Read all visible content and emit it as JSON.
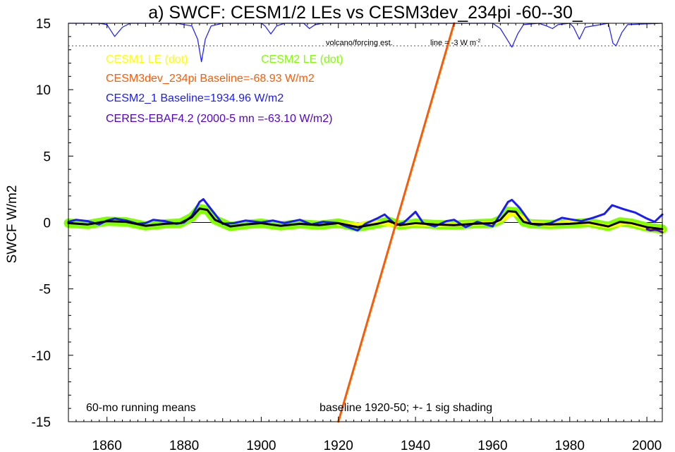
{
  "chart_data": {
    "type": "line",
    "title": "a) SWCF: CESM1/2 LEs vs CESM3dev_234pi -60--30_",
    "ylabel": "SWCF W/m2",
    "xlabel": "",
    "xlim": [
      1850,
      2004
    ],
    "ylim": [
      -15,
      15
    ],
    "x_ticks": [
      1860,
      1880,
      1900,
      1920,
      1940,
      1960,
      1980,
      2000
    ],
    "y_ticks": [
      15,
      10,
      5,
      0,
      -5,
      -10,
      -15
    ],
    "legend": [
      {
        "label": "CESM1 LE (dot)",
        "color": "#ffff00"
      },
      {
        "label": "CESM2 LE (dot)",
        "color": "#80ff00"
      },
      {
        "label": "CESM3dev_234pi Baseline=-68.93 W/m2",
        "color": "#ff5a00"
      },
      {
        "label": "CESM2_1 Baseline=1934.96 W/m2",
        "color": "#1a1aff"
      },
      {
        "label": "CERES-EBAF4.2 (2000-5 mn =-63.10 W/m2)",
        "color": "#5500cc"
      }
    ],
    "annotations": {
      "volcano": "volcano/forcing est.",
      "line_note": "line = -3 W m",
      "line_note_sup": "-2",
      "running": "60-mo running means",
      "baseline": "baseline 1920-50; +- 1 sig shading"
    },
    "reference_line_y": 13.3,
    "series": [
      {
        "name": "volcano/forcing est.",
        "color": "#1a1aff",
        "x": [
          1850,
          1858,
          1860,
          1862,
          1864,
          1866,
          1878,
          1882,
          1883.5,
          1884.5,
          1885.5,
          1887,
          1890,
          1900,
          1901,
          1902.5,
          1904,
          1906,
          1911,
          1912.5,
          1914,
          1916,
          1960,
          1962,
          1963.5,
          1965,
          1966.5,
          1968,
          1972,
          1974,
          1975.5,
          1977,
          1980,
          1981,
          1982.5,
          1984,
          1990,
          1991.2,
          1992,
          1993.5,
          1995,
          2004
        ],
        "y": [
          15,
          15,
          14.9,
          14,
          14.7,
          15,
          15,
          14.8,
          13.8,
          12.1,
          13.8,
          14.8,
          15,
          15,
          14.8,
          14.2,
          14.8,
          15,
          15,
          14.6,
          14.9,
          15,
          15,
          14.6,
          13.9,
          13.2,
          14.2,
          14.9,
          15,
          14.8,
          14.6,
          14.9,
          15,
          14.7,
          13.8,
          14.7,
          15,
          13.5,
          13.3,
          14.3,
          14.9,
          15
        ]
      },
      {
        "name": "CESM2 LE (dot)",
        "color": "#80ff00",
        "x": [
          1850,
          1855,
          1860,
          1865,
          1870,
          1875,
          1879,
          1882,
          1884,
          1886,
          1888,
          1892,
          1896,
          1900,
          1905,
          1910,
          1915,
          1920,
          1925,
          1930,
          1933,
          1936,
          1940,
          1945,
          1950,
          1955,
          1960,
          1962,
          1964,
          1966,
          1968,
          1970,
          1975,
          1980,
          1985,
          1990,
          1993,
          1996,
          2000,
          2004
        ],
        "y": [
          -0.05,
          -0.15,
          0.1,
          0.05,
          -0.25,
          -0.1,
          -0.05,
          0.4,
          1.05,
          0.95,
          0.2,
          -0.3,
          -0.15,
          -0.05,
          -0.25,
          -0.1,
          -0.2,
          -0.05,
          -0.35,
          -0.1,
          0.1,
          -0.2,
          -0.05,
          -0.15,
          -0.2,
          -0.1,
          -0.05,
          0.2,
          0.85,
          0.8,
          0.05,
          -0.1,
          -0.15,
          -0.1,
          0.0,
          -0.3,
          0.05,
          -0.05,
          -0.35,
          -0.5
        ]
      },
      {
        "name": "CESM1 LE (dot)",
        "color": "#ffff00",
        "x": [
          1920,
          1925,
          1930,
          1935,
          1940,
          1945,
          1950,
          1955,
          1960,
          1963,
          1965,
          1967,
          1970,
          1975,
          1980,
          1985,
          1990,
          1995,
          2000,
          2004
        ],
        "y": [
          -0.1,
          -0.15,
          0.0,
          -0.2,
          -0.1,
          -0.2,
          -0.15,
          -0.1,
          -0.05,
          0.3,
          0.7,
          0.5,
          -0.05,
          -0.15,
          0.05,
          -0.05,
          -0.3,
          0.0,
          -0.4,
          -0.55
        ]
      },
      {
        "name": "CESM2_1 Baseline=1934.96 W/m2",
        "color": "#1a1aff",
        "x": [
          1850,
          1852,
          1855,
          1858,
          1860,
          1862,
          1865,
          1868,
          1870,
          1872,
          1875,
          1878,
          1880,
          1882,
          1884,
          1885,
          1887,
          1890,
          1893,
          1896,
          1900,
          1903,
          1906,
          1910,
          1913,
          1916,
          1920,
          1922,
          1925,
          1927,
          1930,
          1932,
          1935,
          1937,
          1940,
          1942,
          1945,
          1948,
          1950,
          1953,
          1956,
          1960,
          1962,
          1964,
          1965,
          1967,
          1970,
          1972,
          1975,
          1978,
          1980,
          1983,
          1986,
          1989,
          1991,
          1994,
          1997,
          2000,
          2002,
          2004
        ],
        "y": [
          0.05,
          0.2,
          0.1,
          -0.15,
          0.15,
          0.3,
          0.15,
          -0.1,
          -0.05,
          0.2,
          0.1,
          -0.1,
          0.0,
          0.5,
          1.55,
          1.75,
          1.0,
          -0.1,
          -0.05,
          0.15,
          0.0,
          0.15,
          -0.05,
          0.2,
          -0.15,
          0.05,
          -0.05,
          -0.3,
          -0.6,
          -0.1,
          0.3,
          0.6,
          -0.2,
          0.0,
          0.8,
          -0.05,
          -0.3,
          0.1,
          0.2,
          -0.35,
          0.05,
          -0.3,
          0.6,
          1.55,
          1.7,
          1.1,
          -0.1,
          -0.2,
          -0.05,
          0.35,
          0.25,
          0.1,
          0.35,
          0.65,
          1.3,
          1.0,
          0.75,
          0.3,
          0.05,
          0.6
        ]
      },
      {
        "name": "CERES-EBAF4.2 (2000-5 mn =-63.10 W/m2)",
        "color": "#5500cc",
        "x": [
          2000,
          2001,
          2002,
          2003,
          2004
        ],
        "y": [
          -0.5,
          -0.6,
          -0.55,
          -0.6,
          -0.75
        ]
      },
      {
        "name": "ensemble mean",
        "color": "#000000",
        "x": [
          1850,
          1855,
          1860,
          1865,
          1870,
          1875,
          1879,
          1882,
          1884,
          1886,
          1888,
          1892,
          1896,
          1900,
          1905,
          1910,
          1915,
          1920,
          1925,
          1930,
          1933,
          1936,
          1940,
          1945,
          1950,
          1955,
          1960,
          1962,
          1964,
          1966,
          1968,
          1970,
          1975,
          1980,
          1985,
          1990,
          1993,
          1996,
          2000,
          2004
        ],
        "y": [
          -0.05,
          -0.15,
          0.1,
          0.05,
          -0.25,
          -0.1,
          -0.05,
          0.4,
          1.05,
          0.95,
          0.2,
          -0.3,
          -0.15,
          -0.05,
          -0.25,
          -0.1,
          -0.2,
          -0.05,
          -0.35,
          -0.1,
          0.1,
          -0.2,
          -0.05,
          -0.15,
          -0.2,
          -0.1,
          -0.05,
          0.2,
          0.85,
          0.8,
          0.05,
          -0.1,
          -0.15,
          -0.1,
          0.0,
          -0.3,
          0.05,
          -0.05,
          -0.35,
          -0.5
        ]
      },
      {
        "name": "CESM3dev_234pi Baseline=-68.93 W/m2",
        "color": "#ff5a00",
        "x": [
          1920,
          1950
        ],
        "y": [
          -15,
          15
        ]
      }
    ]
  }
}
